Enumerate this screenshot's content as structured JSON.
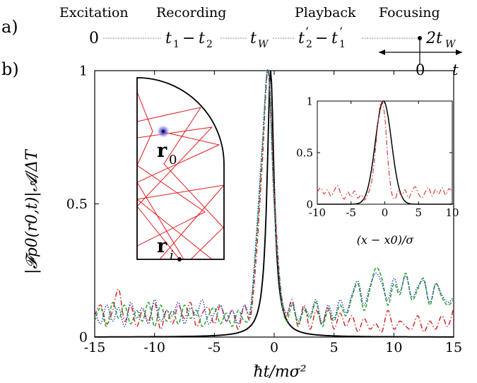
{
  "panel_a": {
    "label": "a)",
    "stages": [
      "Excitation",
      "Recording",
      "Playback",
      "Focusing"
    ],
    "timeline": {
      "start": "0",
      "t1": "t",
      "t1_sub": "1",
      "minus1": "−",
      "t2": "t",
      "t2_sub": "2",
      "tw": "t",
      "tw_sub": "W",
      "t2p": "t",
      "t2p_sub": "2",
      "t2p_prime": "’",
      "minus2": "−",
      "t1p": "t",
      "t1p_sub": "1",
      "t1p_prime": "’",
      "end": "2t",
      "end_sub": "W"
    },
    "focus_axis": {
      "zero": "0",
      "var": "t"
    }
  },
  "panel_b": {
    "label": "b)",
    "ylabel": "|𝓕p0(r0,t)|𝓐/ΔT",
    "xlabel": "ħt/mσ²",
    "inset_billiard": {
      "r0": "r",
      "r0_sub": "0",
      "ri": "r",
      "ri_sub": "i"
    },
    "inset_xlabel": "(x − x0)/σ"
  },
  "chart_data": [
    {
      "type": "line",
      "title": "",
      "xlabel": "ħt/mσ²",
      "ylabel": "|𝓕p0(r0,t)|𝓐/ΔT",
      "xlim": [
        -15,
        15
      ],
      "ylim": [
        0,
        1
      ],
      "xticks": [
        -15,
        -10,
        -5,
        0,
        5,
        10,
        15
      ],
      "yticks": [
        0,
        0.5,
        1
      ],
      "ytick_labels": [
        "0",
        "0.5",
        "1"
      ],
      "grid": false,
      "series": [
        {
          "color": "#000000",
          "style": "solid",
          "peak_at": -0.3,
          "peak": 1.0,
          "halfwidth": 0.35
        },
        {
          "color": "#d62728",
          "style": "dash-dot",
          "x": [
            -15,
            -14.5,
            -14,
            -13.5,
            -13,
            -12.5,
            -12,
            -11.5,
            -11,
            -10.5,
            -10,
            -9.5,
            -9,
            -8.5,
            -8,
            -7.5,
            -7,
            -6.5,
            -6,
            -5.5,
            -5,
            -4.5,
            -4,
            -3.5,
            -3,
            -2.5,
            -2,
            -1.5,
            -1,
            -0.5,
            0,
            0.5,
            1,
            1.5,
            2,
            2.5,
            3,
            3.5,
            4,
            4.5,
            5,
            5.5,
            6,
            6.5,
            7,
            7.5,
            8,
            8.5,
            9,
            9.5,
            10,
            10.5,
            11,
            11.5,
            12,
            12.5,
            13,
            13.5,
            14,
            14.5,
            15
          ],
          "y": [
            0.08,
            0.12,
            0.05,
            0.1,
            0.18,
            0.06,
            0.12,
            0.04,
            0.1,
            0.06,
            0.13,
            0.03,
            0.1,
            0.05,
            0.12,
            0.07,
            0.13,
            0.04,
            0.09,
            0.11,
            0.05,
            0.12,
            0.06,
            0.1,
            0.03,
            0.12,
            0.07,
            0.3,
            0.65,
            1.0,
            0.55,
            0.2,
            0.08,
            0.14,
            0.04,
            0.12,
            0.03,
            0.1,
            0.05,
            0.11,
            0.03,
            0.09,
            0.04,
            0.08,
            0.02,
            0.07,
            0.03,
            0.05,
            0.02,
            0.1,
            0.03,
            0.06,
            0.04,
            0.03,
            0.08,
            0.02,
            0.06,
            0.03,
            0.08,
            0.04,
            0.11
          ]
        },
        {
          "color": "#2ca02c",
          "style": "dashed",
          "x": [
            -15,
            -14.5,
            -14,
            -13.5,
            -13,
            -12.5,
            -12,
            -11.5,
            -11,
            -10.5,
            -10,
            -9.5,
            -9,
            -8.5,
            -8,
            -7.5,
            -7,
            -6.5,
            -6,
            -5.5,
            -5,
            -4.5,
            -4,
            -3.5,
            -3,
            -2.5,
            -2,
            -1.5,
            -1,
            -0.5,
            0,
            0.5,
            1,
            1.5,
            2,
            2.5,
            3,
            3.5,
            4,
            4.5,
            5,
            5.5,
            6,
            6.5,
            7,
            7.5,
            8,
            8.5,
            9,
            9.5,
            10,
            10.5,
            11,
            11.5,
            12,
            12.5,
            13,
            13.5,
            14,
            14.5,
            15
          ],
          "y": [
            0.06,
            0.11,
            0.04,
            0.13,
            0.07,
            0.12,
            0.05,
            0.1,
            0.06,
            0.13,
            0.04,
            0.12,
            0.06,
            0.1,
            0.05,
            0.12,
            0.07,
            0.1,
            0.04,
            0.08,
            0.11,
            0.05,
            0.09,
            0.04,
            0.1,
            0.06,
            0.09,
            0.35,
            0.7,
            1.0,
            0.5,
            0.18,
            0.06,
            0.12,
            0.05,
            0.1,
            0.07,
            0.13,
            0.04,
            0.1,
            0.06,
            0.12,
            0.08,
            0.15,
            0.2,
            0.1,
            0.18,
            0.26,
            0.22,
            0.12,
            0.2,
            0.16,
            0.24,
            0.14,
            0.18,
            0.22,
            0.12,
            0.2,
            0.15,
            0.12,
            0.14
          ]
        },
        {
          "color": "#1f3fbf",
          "style": "dotted",
          "x": [
            -15,
            -14.5,
            -14,
            -13.5,
            -13,
            -12.5,
            -12,
            -11.5,
            -11,
            -10.5,
            -10,
            -9.5,
            -9,
            -8.5,
            -8,
            -7.5,
            -7,
            -6.5,
            -6,
            -5.5,
            -5,
            -4.5,
            -4,
            -3.5,
            -3,
            -2.5,
            -2,
            -1.5,
            -1,
            -0.5,
            0,
            0.5,
            1,
            1.5,
            2,
            2.5,
            3,
            3.5,
            4,
            4.5,
            5,
            5.5,
            6,
            6.5,
            7,
            7.5,
            8,
            8.5,
            9,
            9.5,
            10,
            10.5,
            11,
            11.5,
            12,
            12.5,
            13,
            13.5,
            14,
            14.5,
            15
          ],
          "y": [
            0.1,
            0.05,
            0.12,
            0.06,
            0.11,
            0.04,
            0.13,
            0.07,
            0.11,
            0.05,
            0.14,
            0.06,
            0.1,
            0.08,
            0.13,
            0.05,
            0.11,
            0.08,
            0.14,
            0.05,
            0.09,
            0.12,
            0.06,
            0.1,
            0.05,
            0.12,
            0.1,
            0.38,
            0.72,
            1.0,
            0.5,
            0.19,
            0.09,
            0.13,
            0.06,
            0.11,
            0.08,
            0.14,
            0.05,
            0.12,
            0.07,
            0.14,
            0.09,
            0.16,
            0.21,
            0.12,
            0.19,
            0.24,
            0.2,
            0.14,
            0.22,
            0.17,
            0.23,
            0.15,
            0.19,
            0.21,
            0.13,
            0.2,
            0.16,
            0.13,
            0.15
          ]
        }
      ]
    },
    {
      "type": "line",
      "title": "",
      "xlabel": "(x − x0)/σ",
      "ylabel": "",
      "xlim": [
        -10,
        10
      ],
      "ylim": [
        0,
        1
      ],
      "xticks": [
        -10,
        -5,
        0,
        5,
        10
      ],
      "yticks": [
        0,
        0.5,
        1
      ],
      "ytick_labels": [
        "0",
        "0.5",
        "1"
      ],
      "grid": false,
      "series": [
        {
          "color": "#000000",
          "style": "solid",
          "gaussian_center": -0.2,
          "gaussian_sigma": 1.2
        },
        {
          "color": "#d62728",
          "style": "dash-dot",
          "x": [
            -10,
            -9.5,
            -9,
            -8.5,
            -8,
            -7.5,
            -7,
            -6.5,
            -6,
            -5.5,
            -5,
            -4.5,
            -4,
            -3.5,
            -3,
            -2.5,
            -2,
            -1.5,
            -1,
            -0.5,
            0,
            0.5,
            1,
            1.5,
            2,
            2.5,
            3,
            3.5,
            4,
            4.5,
            5,
            5.5,
            6,
            6.5,
            7,
            7.5,
            8,
            8.5,
            9,
            9.5,
            10
          ],
          "y": [
            0.12,
            0.16,
            0.1,
            0.14,
            0.08,
            0.13,
            0.18,
            0.1,
            0.05,
            0.12,
            0.07,
            0.13,
            0.06,
            0.09,
            0.04,
            0.1,
            0.2,
            0.45,
            0.8,
            1.0,
            0.85,
            0.4,
            0.12,
            0.05,
            0.13,
            0.08,
            0.14,
            0.06,
            0.12,
            0.17,
            0.1,
            0.06,
            0.12,
            0.16,
            0.08,
            0.14,
            0.1,
            0.16,
            0.09,
            0.15,
            0.12
          ]
        }
      ]
    }
  ]
}
